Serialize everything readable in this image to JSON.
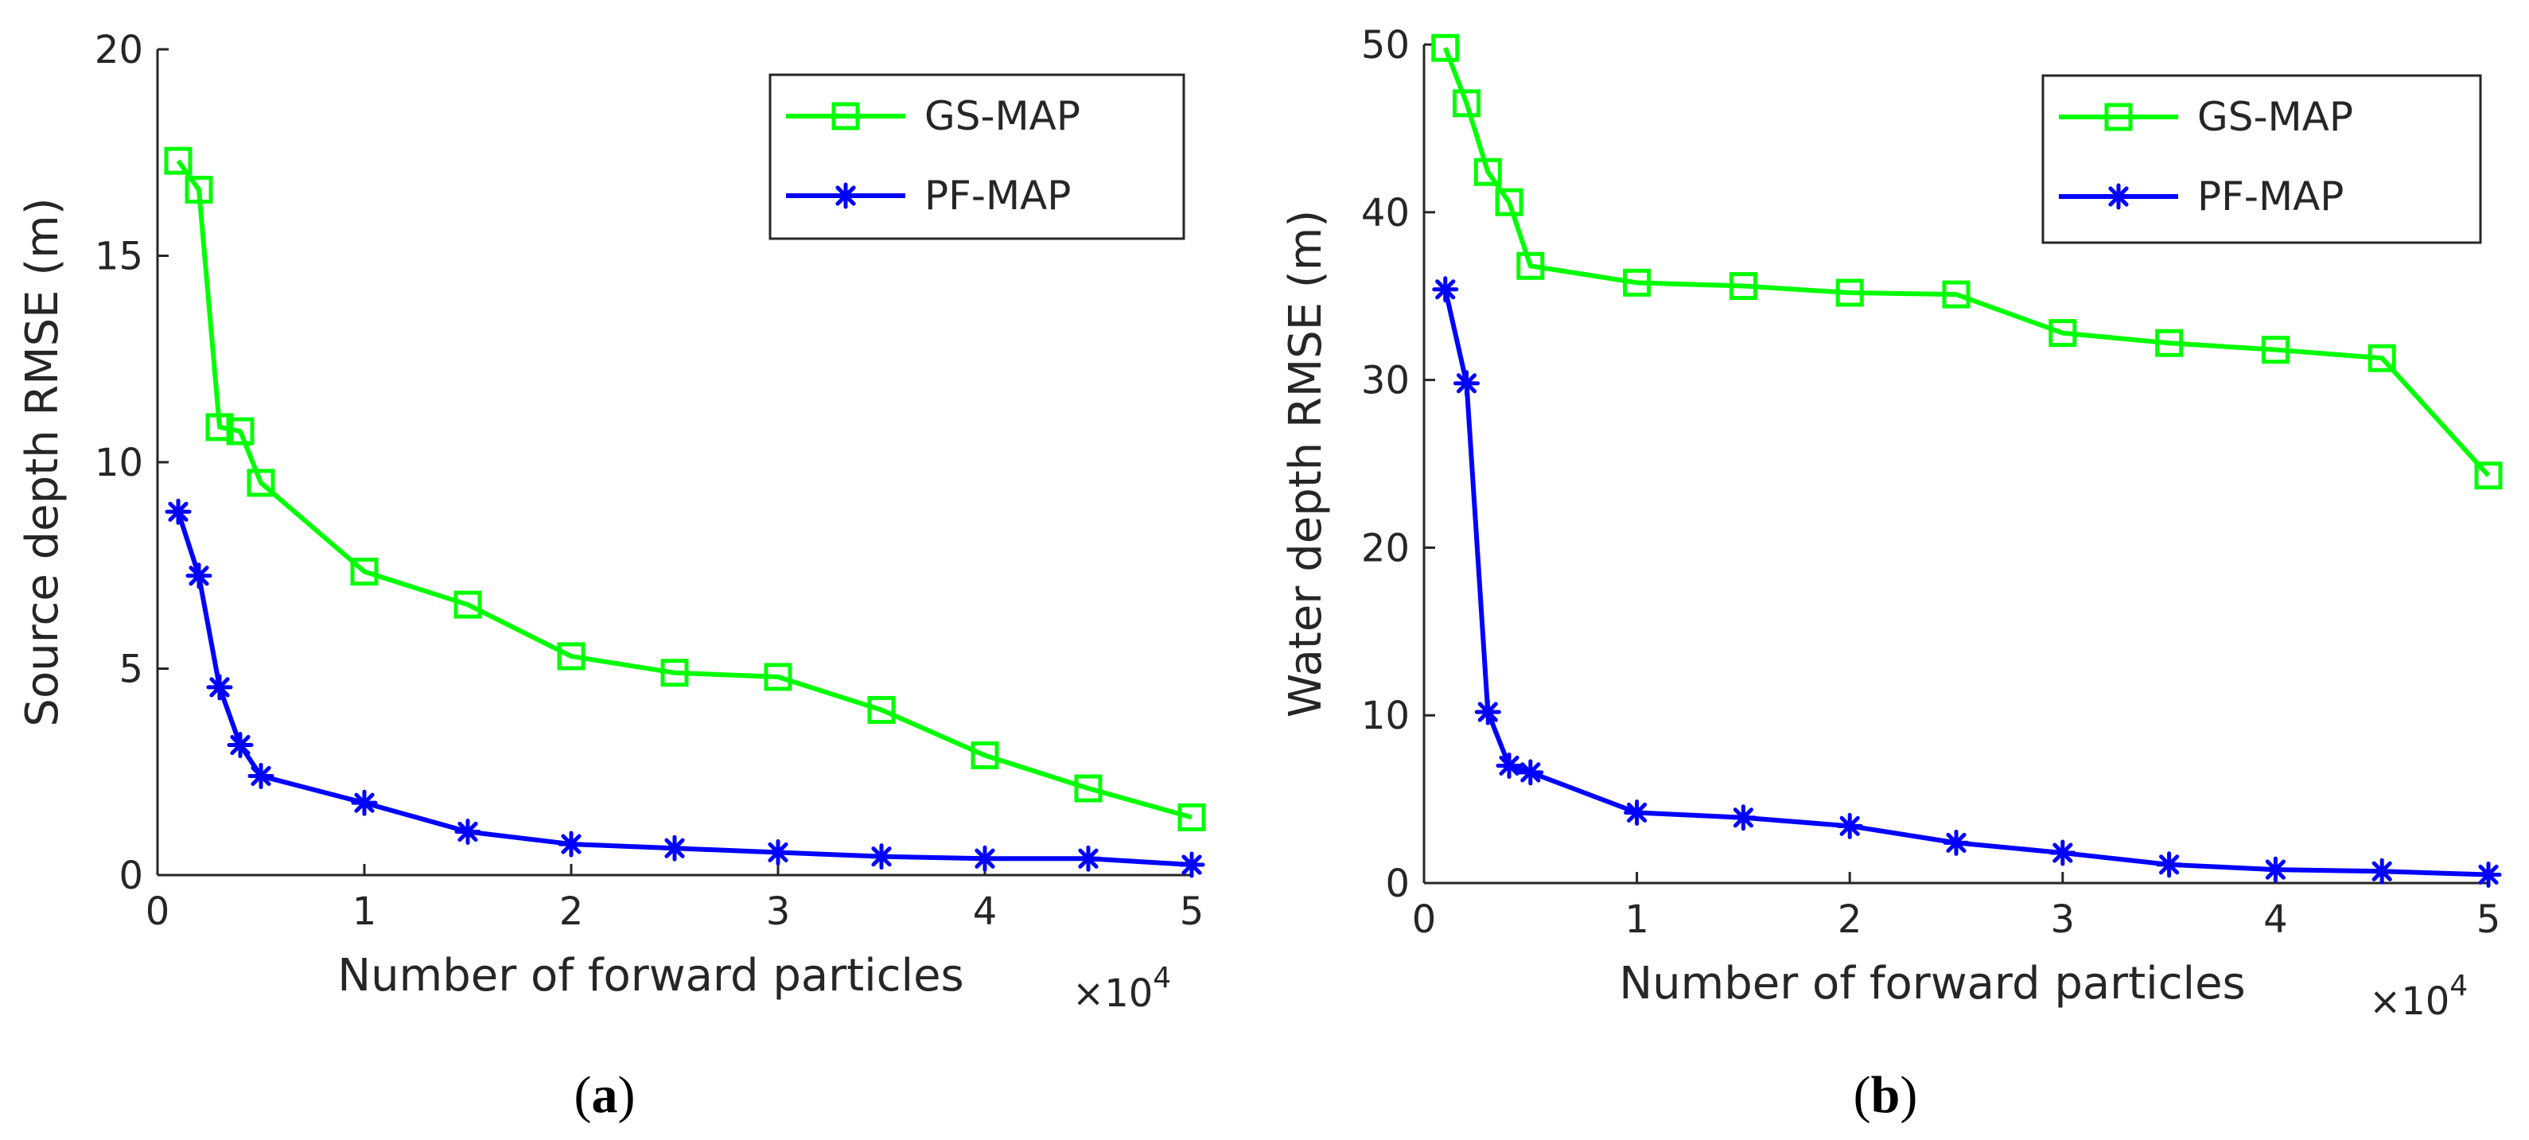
{
  "colors": {
    "gs_map": "#00ff00",
    "pf_map": "#0000ff",
    "axis": "#262626",
    "background": "#ffffff"
  },
  "chart_data": [
    {
      "id": "a",
      "type": "line",
      "caption_open": "(",
      "caption_letter": "a",
      "caption_close": ")",
      "xlabel": "Number of forward particles",
      "x_multiplier": "×10",
      "x_multiplier_exp": "4",
      "ylabel": "Source depth RMSE (m)",
      "xlim": [
        0,
        5
      ],
      "ylim": [
        0,
        20
      ],
      "xticks": [
        0,
        1,
        2,
        3,
        4,
        5
      ],
      "yticks": [
        0,
        5,
        10,
        15,
        20
      ],
      "legend_position": "top-right",
      "series": [
        {
          "name": "GS-MAP",
          "marker": "square",
          "color": "#00ff00",
          "x": [
            0.1,
            0.2,
            0.3,
            0.4,
            0.5,
            1.0,
            1.5,
            2.0,
            2.5,
            3.0,
            3.5,
            4.0,
            4.5,
            5.0
          ],
          "values": [
            17.3,
            16.6,
            10.85,
            10.75,
            9.5,
            7.35,
            6.55,
            5.3,
            4.9,
            4.8,
            4.0,
            2.9,
            2.1,
            1.4
          ]
        },
        {
          "name": "PF-MAP",
          "marker": "asterisk",
          "color": "#0000ff",
          "x": [
            0.1,
            0.2,
            0.3,
            0.4,
            0.5,
            1.0,
            1.5,
            2.0,
            2.5,
            3.0,
            3.5,
            4.0,
            4.5,
            5.0
          ],
          "values": [
            8.8,
            7.25,
            4.55,
            3.15,
            2.4,
            1.75,
            1.05,
            0.75,
            0.65,
            0.55,
            0.45,
            0.4,
            0.4,
            0.25
          ]
        }
      ]
    },
    {
      "id": "b",
      "type": "line",
      "caption_open": "(",
      "caption_letter": "b",
      "caption_close": ")",
      "xlabel": "Number of forward particles",
      "x_multiplier": "×10",
      "x_multiplier_exp": "4",
      "ylabel": "Water depth RMSE (m)",
      "xlim": [
        0,
        5
      ],
      "ylim": [
        0,
        50
      ],
      "xticks": [
        0,
        1,
        2,
        3,
        4,
        5
      ],
      "yticks": [
        0,
        10,
        20,
        30,
        40,
        50
      ],
      "legend_position": "top-right",
      "series": [
        {
          "name": "GS-MAP",
          "marker": "square",
          "color": "#00ff00",
          "x": [
            0.1,
            0.2,
            0.3,
            0.4,
            0.5,
            1.0,
            1.5,
            2.0,
            2.5,
            3.0,
            3.5,
            4.0,
            4.5,
            5.0
          ],
          "values": [
            49.8,
            46.5,
            42.4,
            40.6,
            36.8,
            35.8,
            35.6,
            35.2,
            35.1,
            32.8,
            32.2,
            31.8,
            31.3,
            24.3
          ]
        },
        {
          "name": "PF-MAP",
          "marker": "asterisk",
          "color": "#0000ff",
          "x": [
            0.1,
            0.2,
            0.3,
            0.4,
            0.5,
            1.0,
            1.5,
            2.0,
            2.5,
            3.0,
            3.5,
            4.0,
            4.5,
            5.0
          ],
          "values": [
            35.4,
            29.8,
            10.2,
            7.0,
            6.6,
            4.2,
            3.9,
            3.4,
            2.4,
            1.8,
            1.1,
            0.8,
            0.7,
            0.5
          ]
        }
      ]
    }
  ]
}
